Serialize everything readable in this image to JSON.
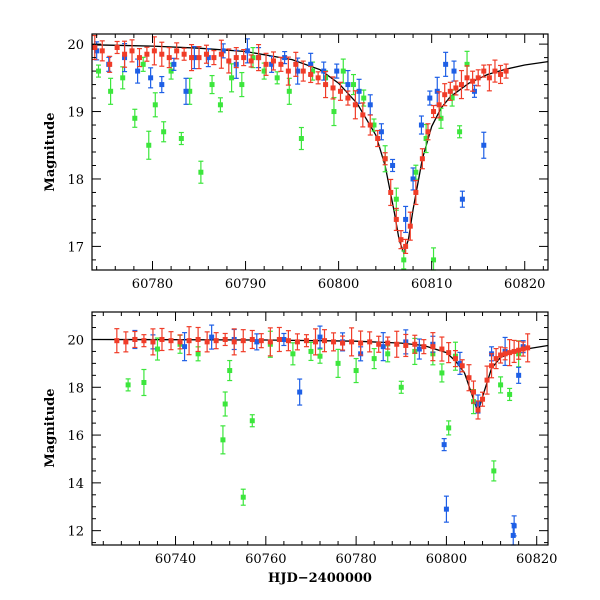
{
  "colors": {
    "green": "#3ce63c",
    "blue": "#1e5fe6",
    "red": "#f03c28",
    "model": "#000000",
    "background": "#ffffff"
  },
  "chart_data": [
    {
      "type": "scatter",
      "panel": "top",
      "title": "",
      "xlabel": "",
      "ylabel": "Magnitude",
      "xlim": [
        60773.5,
        60822.5
      ],
      "ylim": [
        20.15,
        16.65
      ],
      "y_inverted": true,
      "xticks": [
        60780,
        60790,
        60800,
        60810,
        60820
      ],
      "yticks": [
        17,
        18,
        19,
        20
      ],
      "model_curve": {
        "x": [
          60773.5,
          60780,
          60785,
          60790,
          60795,
          60798,
          60800,
          60802,
          60804,
          60805,
          60806,
          60806.5,
          60807,
          60807.5,
          60808,
          60809,
          60810,
          60811,
          60812,
          60814,
          60816,
          60818,
          60820,
          60822.5
        ],
        "y": [
          19.99,
          19.97,
          19.94,
          19.89,
          19.77,
          19.62,
          19.42,
          19.12,
          18.65,
          18.2,
          17.5,
          17.1,
          16.9,
          17.1,
          17.55,
          18.3,
          18.78,
          19.05,
          19.22,
          19.42,
          19.55,
          19.63,
          19.69,
          19.74
        ]
      },
      "series": [
        {
          "color_key": "green",
          "x": [
            60774.2,
            60775.5,
            60776.8,
            60778.1,
            60779.0,
            60779.6,
            60780.3,
            60781.2,
            60782.0,
            60783.1,
            60784.0,
            60785.2,
            60786.4,
            60787.3,
            60788.5,
            60789.6,
            60790.8,
            60792.0,
            60793.4,
            60794.7,
            60796.0,
            60797.2,
            60798.6,
            60799.5,
            60800.5,
            60801.6,
            60802.7,
            60803.8,
            60805.0,
            60806.2,
            60807.0,
            60808.3,
            60809.4,
            60810.2,
            60811.0,
            60812.2,
            60813.0,
            60813.8
          ],
          "y": [
            19.6,
            19.3,
            19.5,
            18.9,
            19.7,
            18.5,
            19.1,
            18.7,
            19.6,
            18.6,
            19.3,
            18.1,
            19.4,
            19.1,
            19.5,
            19.4,
            19.8,
            19.6,
            19.5,
            19.3,
            18.6,
            19.6,
            19.5,
            19.0,
            19.6,
            19.4,
            19.2,
            18.8,
            18.3,
            17.7,
            16.8,
            18.1,
            18.6,
            16.8,
            18.9,
            19.2,
            18.7,
            19.7
          ]
        },
        {
          "color_key": "blue",
          "x": [
            60774.0,
            60775.3,
            60777.0,
            60778.4,
            60779.8,
            60781.0,
            60782.3,
            60783.6,
            60784.5,
            60786.0,
            60787.6,
            60789.0,
            60790.2,
            60791.4,
            60792.8,
            60794.2,
            60795.6,
            60797.0,
            60798.4,
            60799.8,
            60801.0,
            60802.2,
            60803.4,
            60804.6,
            60805.8,
            60807.2,
            60808.0,
            60808.9,
            60809.8,
            60810.6,
            60811.5,
            60812.4,
            60813.3,
            60814.6,
            60815.6
          ],
          "y": [
            19.9,
            19.7,
            19.8,
            19.6,
            19.5,
            19.4,
            19.7,
            19.3,
            19.8,
            19.8,
            19.9,
            19.7,
            19.9,
            19.8,
            19.7,
            19.8,
            19.6,
            19.7,
            19.6,
            19.6,
            19.4,
            19.3,
            19.1,
            18.7,
            18.2,
            17.4,
            18.0,
            18.8,
            19.2,
            19.3,
            19.7,
            19.6,
            17.7,
            19.3,
            18.5
          ]
        },
        {
          "color_key": "red",
          "x": [
            60773.8,
            60774.6,
            60775.4,
            60776.2,
            60777.0,
            60777.8,
            60778.6,
            60779.4,
            60780.2,
            60781.0,
            60781.8,
            60782.6,
            60783.4,
            60784.2,
            60785.0,
            60785.8,
            60786.6,
            60787.4,
            60788.2,
            60789.0,
            60789.8,
            60790.6,
            60791.4,
            60792.2,
            60793.0,
            60793.8,
            60794.6,
            60795.4,
            60796.2,
            60797.0,
            60797.8,
            60798.6,
            60799.4,
            60800.2,
            60801.0,
            60801.8,
            60802.6,
            60803.4,
            60804.2,
            60805.0,
            60805.6,
            60806.2,
            60806.7,
            60807.2,
            60807.7,
            60808.3,
            60809.0,
            60809.6,
            60810.2,
            60810.8,
            60811.4,
            60812.0,
            60812.6,
            60813.2,
            60813.8,
            60814.4,
            60815.0,
            60815.6,
            60816.2,
            60816.8,
            60817.4,
            60818.0
          ],
          "y": [
            19.95,
            19.9,
            19.7,
            19.95,
            19.85,
            19.9,
            19.8,
            19.85,
            19.9,
            19.85,
            19.8,
            19.9,
            19.85,
            19.8,
            19.8,
            19.85,
            19.8,
            19.85,
            19.75,
            19.8,
            19.8,
            19.75,
            19.8,
            19.7,
            19.75,
            19.7,
            19.6,
            19.7,
            19.6,
            19.55,
            19.5,
            19.4,
            19.35,
            19.3,
            19.2,
            19.1,
            18.95,
            18.8,
            18.6,
            18.3,
            17.8,
            17.4,
            17.1,
            17.0,
            17.3,
            17.8,
            18.3,
            18.7,
            19.0,
            19.1,
            19.25,
            19.3,
            19.35,
            19.4,
            19.5,
            19.45,
            19.5,
            19.6,
            19.5,
            19.6,
            19.55,
            19.6
          ]
        }
      ]
    },
    {
      "type": "scatter",
      "panel": "bottom",
      "title": "",
      "xlabel": "HJD−2400000",
      "ylabel": "Magnitude",
      "xlim": [
        60721.5,
        60822.5
      ],
      "ylim": [
        21.15,
        11.4
      ],
      "y_inverted": true,
      "xticks": [
        60740,
        60760,
        60780,
        60800,
        60820
      ],
      "yticks": [
        12,
        14,
        16,
        18,
        20
      ],
      "model_curve": {
        "x": [
          60721.5,
          60740,
          60760,
          60780,
          60790,
          60795,
          60800,
          60802,
          60804,
          60806,
          60807,
          60808,
          60810,
          60812,
          60816,
          60822.5
        ],
        "y": [
          20.0,
          19.99,
          19.98,
          19.93,
          19.85,
          19.75,
          19.45,
          19.1,
          18.6,
          17.5,
          16.95,
          17.6,
          18.8,
          19.25,
          19.55,
          19.75
        ]
      },
      "series": [
        {
          "color_key": "green",
          "x": [
            60729.5,
            60733.0,
            60736.0,
            60741.0,
            60745.0,
            60750.5,
            60751.0,
            60752.0,
            60755.0,
            60757.0,
            60761.0,
            60766.0,
            60770.0,
            60772.0,
            60776.0,
            60780.0,
            60784.0,
            60787.0,
            60790.0,
            60793.0,
            60797.0,
            60799.0,
            60800.5,
            60802.0,
            60806.0,
            60810.5,
            60812.0,
            60814.0,
            60816.0
          ],
          "y": [
            18.1,
            18.2,
            19.6,
            19.8,
            19.4,
            15.8,
            17.3,
            18.7,
            13.4,
            16.6,
            19.8,
            19.4,
            19.5,
            19.3,
            19.0,
            18.7,
            19.2,
            19.4,
            18.0,
            19.5,
            19.4,
            18.6,
            16.3,
            19.3,
            17.4,
            14.5,
            18.1,
            17.7,
            19.4
          ]
        },
        {
          "color_key": "blue",
          "x": [
            60731.0,
            60735.0,
            60742.0,
            60748.0,
            60753.0,
            60758.0,
            60764.0,
            60767.5,
            60772.0,
            60777.0,
            60781.0,
            60786.0,
            60791.0,
            60794.0,
            60797.0,
            60799.5,
            60800.0,
            60803.0,
            60807.0,
            60810.0,
            60813.0,
            60814.8,
            60815.0,
            60816.0,
            60817.0
          ],
          "y": [
            20.0,
            19.9,
            19.7,
            20.1,
            20.0,
            19.9,
            20.0,
            17.8,
            20.1,
            19.9,
            19.4,
            19.7,
            19.9,
            19.6,
            19.8,
            15.6,
            12.9,
            19.0,
            17.3,
            19.4,
            19.5,
            11.8,
            12.2,
            18.5,
            19.7
          ]
        },
        {
          "color_key": "red",
          "x": [
            60727.0,
            60729.0,
            60731.0,
            60733.0,
            60735.0,
            60737.0,
            60739.0,
            60741.0,
            60743.0,
            60745.0,
            60747.0,
            60749.0,
            60751.0,
            60753.0,
            60755.0,
            60757.0,
            60759.0,
            60761.0,
            60763.0,
            60765.0,
            60767.0,
            60769.0,
            60771.0,
            60773.0,
            60775.0,
            60777.0,
            60779.0,
            60781.0,
            60783.0,
            60785.0,
            60787.0,
            60789.0,
            60791.0,
            60793.0,
            60795.0,
            60797.0,
            60799.0,
            60800.5,
            60802.0,
            60803.5,
            60805.0,
            60806.0,
            60807.0,
            60808.0,
            60809.0,
            60810.0,
            60811.0,
            60812.0,
            60813.0,
            60814.0,
            60815.0,
            60816.0,
            60817.0,
            60818.0
          ],
          "y": [
            19.95,
            19.9,
            20.0,
            19.95,
            19.9,
            20.0,
            19.95,
            19.9,
            19.95,
            20.0,
            19.9,
            19.95,
            20.0,
            19.9,
            19.95,
            20.0,
            19.95,
            19.9,
            20.0,
            19.95,
            19.9,
            19.95,
            19.9,
            19.95,
            19.9,
            19.85,
            19.9,
            19.85,
            19.9,
            19.8,
            19.85,
            19.8,
            19.75,
            19.8,
            19.7,
            19.7,
            19.6,
            19.45,
            19.2,
            18.9,
            18.4,
            17.8,
            17.05,
            17.5,
            18.3,
            18.9,
            19.2,
            19.35,
            19.4,
            19.45,
            19.5,
            19.55,
            19.6,
            19.65
          ]
        }
      ]
    }
  ]
}
